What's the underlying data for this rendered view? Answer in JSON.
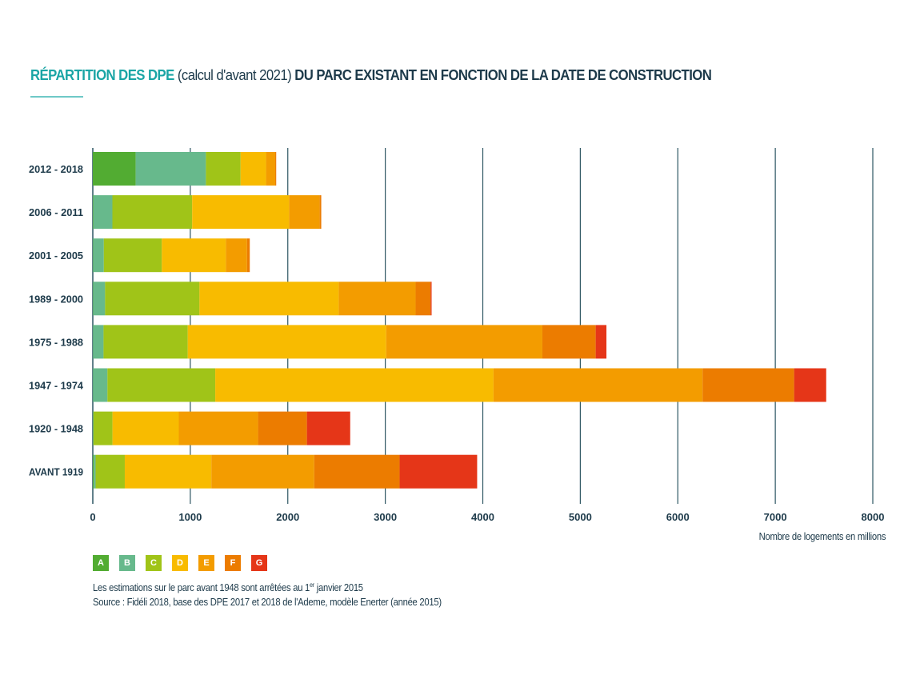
{
  "title": {
    "part1": "RÉPARTITION DES DPE",
    "part2": " (calcul d'avant 2021) ",
    "part3": "DU PARC EXISTANT EN FONCTION DE LA DATE DE CONSTRUCTION"
  },
  "notes": {
    "line1_a": "Les estimations sur le parc avant 1948 sont arrêtées au 1",
    "line1_sup": "er",
    "line1_b": " janvier 2015",
    "line2": "Source : Fidéli 2018, base des DPE 2017 et 2018 de l'Ademe, modèle Enerter (année 2015)"
  },
  "chart_data": {
    "type": "bar",
    "orientation": "horizontal",
    "stacked": true,
    "xlabel": "Nombre de logements en millions",
    "xlim": [
      0,
      8000
    ],
    "xticks": [
      "0",
      "1000",
      "2000",
      "3000",
      "4000",
      "5000",
      "6000",
      "7000",
      "8000"
    ],
    "grid": "vertical",
    "legend_position": "bottom-left",
    "categories": [
      "2012 - 2018",
      "2006 - 2011",
      "2001 - 2005",
      "1989 - 2000",
      "1975 - 1988",
      "1947 - 1974",
      "1920 - 1948",
      "AVANT 1919"
    ],
    "series": [
      {
        "name": "A",
        "color": "#52ac32",
        "values": [
          440,
          5,
          3,
          3,
          2,
          2,
          2,
          10
        ]
      },
      {
        "name": "B",
        "color": "#67b98c",
        "values": [
          720,
          196,
          110,
          123,
          108,
          148,
          5,
          19
        ]
      },
      {
        "name": "C",
        "color": "#a0c418",
        "values": [
          356,
          818,
          595,
          968,
          864,
          1106,
          195,
          299
        ]
      },
      {
        "name": "D",
        "color": "#f8bb00",
        "values": [
          261,
          994,
          657,
          1428,
          2035,
          2854,
          680,
          888
        ]
      },
      {
        "name": "E",
        "color": "#f39c00",
        "values": [
          94,
          314,
          217,
          789,
          1602,
          2144,
          813,
          1055
        ]
      },
      {
        "name": "F",
        "color": "#ec7c00",
        "values": [
          10,
          16,
          28,
          154,
          547,
          939,
          501,
          876
        ]
      },
      {
        "name": "G",
        "color": "#e53618",
        "values": [
          0,
          0,
          0,
          10,
          110,
          329,
          444,
          795
        ]
      }
    ]
  },
  "colors": {
    "title_accent": "#1aa5a5",
    "text": "#1d3a4a",
    "grid": "#2d5663"
  }
}
